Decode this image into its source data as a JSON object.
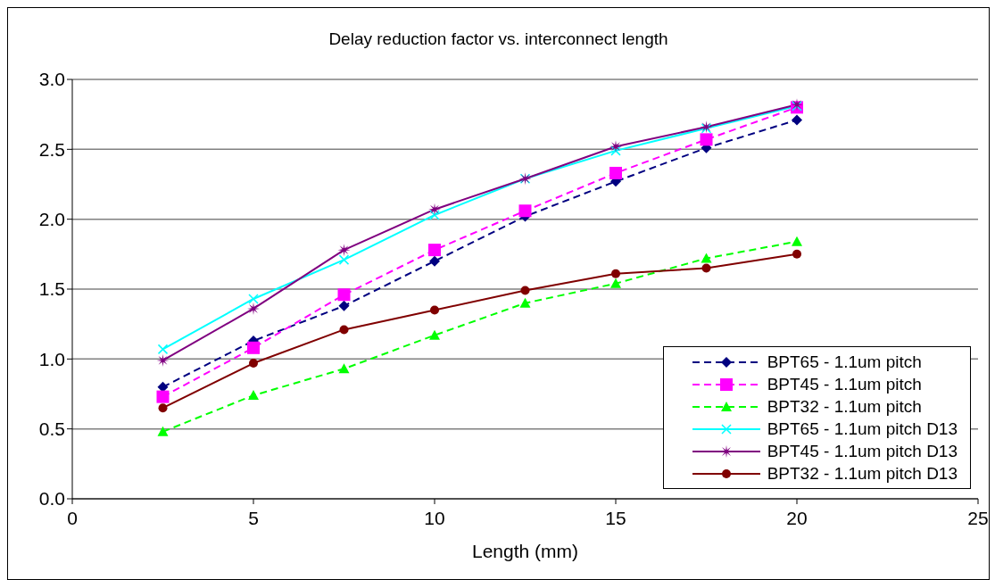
{
  "chart_data": {
    "type": "line",
    "title": "Delay reduction factor vs. interconnect length",
    "xlabel": "Length (mm)",
    "x": [
      2.5,
      5,
      7.5,
      10,
      12.5,
      15,
      17.5,
      20
    ],
    "series": [
      {
        "name": "BPT65 - 1.1um pitch",
        "color": "#000080",
        "marker": "diamond",
        "line_style": "dashed",
        "values": [
          0.8,
          1.13,
          1.38,
          1.7,
          2.02,
          2.27,
          2.51,
          2.71
        ]
      },
      {
        "name": "BPT45 - 1.1um pitch",
        "color": "#ff00ff",
        "marker": "square",
        "line_style": "dashed",
        "values": [
          0.73,
          1.08,
          1.46,
          1.78,
          2.06,
          2.33,
          2.57,
          2.8
        ]
      },
      {
        "name": "BPT32 - 1.1um pitch",
        "color": "#00ff00",
        "marker": "triangle",
        "line_style": "dashed",
        "values": [
          0.48,
          0.74,
          0.93,
          1.17,
          1.4,
          1.54,
          1.72,
          1.84
        ]
      },
      {
        "name": "BPT65 - 1.1um pitch D13",
        "color": "#00ffff",
        "marker": "cross",
        "line_style": "solid",
        "values": [
          1.07,
          1.43,
          1.71,
          2.03,
          2.29,
          2.49,
          2.65,
          2.81
        ]
      },
      {
        "name": "BPT45 - 1.1um pitch D13",
        "color": "#800080",
        "marker": "star",
        "line_style": "solid",
        "values": [
          0.99,
          1.36,
          1.78,
          2.07,
          2.29,
          2.52,
          2.66,
          2.82
        ]
      },
      {
        "name": "BPT32 - 1.1um pitch D13",
        "color": "#800000",
        "marker": "circle",
        "line_style": "solid",
        "values": [
          0.65,
          0.97,
          1.21,
          1.35,
          1.49,
          1.61,
          1.65,
          1.75
        ]
      }
    ],
    "xlim": [
      0,
      25
    ],
    "xticks": [
      0,
      5,
      10,
      15,
      20,
      25
    ],
    "ylim": [
      0,
      3
    ],
    "yticks": [
      {
        "value": 0,
        "label": "0.0"
      },
      {
        "value": 0.5,
        "label": "0.5"
      },
      {
        "value": 1,
        "label": "1.0"
      },
      {
        "value": 1.5,
        "label": "1.5"
      },
      {
        "value": 2,
        "label": "2.0"
      },
      {
        "value": 2.5,
        "label": "2.5"
      },
      {
        "value": 3,
        "label": "3.0"
      }
    ],
    "grid": "y",
    "legend": "bottom right"
  }
}
